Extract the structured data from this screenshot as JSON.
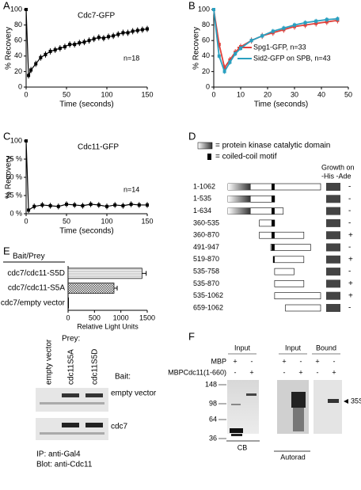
{
  "chart_data": [
    {
      "type": "line",
      "label": "A",
      "title": "Cdc7-GFP",
      "annotation": "n=18",
      "xlabel": "Time (seconds)",
      "ylabel": "% Recovery",
      "x": [
        0,
        3,
        6,
        12,
        18,
        24,
        30,
        36,
        42,
        48,
        54,
        60,
        66,
        72,
        78,
        84,
        90,
        96,
        102,
        108,
        114,
        120,
        126,
        132,
        138,
        144,
        150
      ],
      "series": [
        {
          "name": "Cdc7-GFP",
          "color": "#000000",
          "values": [
            100,
            15,
            22,
            30,
            38,
            42,
            46,
            48,
            50,
            52,
            55,
            55,
            57,
            58,
            60,
            62,
            64,
            63,
            65,
            66,
            68,
            70,
            70,
            72,
            73,
            74,
            75
          ],
          "errors": [
            0,
            4,
            4,
            4,
            4,
            4,
            4,
            4,
            4,
            4,
            4,
            4,
            4,
            4,
            4,
            4,
            4,
            4,
            4,
            4,
            4,
            4,
            4,
            4,
            4,
            4,
            4
          ]
        }
      ],
      "xlim": [
        0,
        150
      ],
      "xticks": [
        0,
        50,
        100,
        150
      ],
      "ylim": [
        0,
        100
      ],
      "yticks": [
        0,
        20,
        40,
        60,
        80,
        100
      ]
    },
    {
      "type": "line",
      "label": "B",
      "xlabel": "Time (seconds)",
      "ylabel": "% Recovery",
      "x": [
        0,
        2,
        4,
        6,
        8,
        10,
        14,
        18,
        22,
        26,
        30,
        34,
        38,
        42,
        46
      ],
      "series": [
        {
          "name": "Spg1-GFP, n=33",
          "color": "#e0403a",
          "values": [
            100,
            55,
            25,
            35,
            45,
            52,
            60,
            66,
            70,
            74,
            78,
            80,
            82,
            84,
            86
          ],
          "errors": [
            0,
            4,
            4,
            4,
            4,
            4,
            4,
            4,
            4,
            4,
            4,
            4,
            4,
            4,
            4
          ]
        },
        {
          "name": "Sid2-GFP on SPB, n=43",
          "color": "#2aa0c0",
          "values": [
            100,
            40,
            20,
            32,
            43,
            50,
            60,
            66,
            72,
            76,
            80,
            83,
            85,
            87,
            88
          ],
          "errors": [
            0,
            3,
            3,
            3,
            3,
            3,
            3,
            3,
            3,
            3,
            3,
            3,
            3,
            3,
            3
          ]
        }
      ],
      "xlim": [
        0,
        50
      ],
      "xticks": [
        0,
        10,
        20,
        30,
        40,
        50
      ],
      "ylim": [
        0,
        100
      ],
      "yticks": [
        0,
        20,
        40,
        60,
        80,
        100
      ]
    },
    {
      "type": "line",
      "label": "C",
      "title": "Cdc11-GFP",
      "annotation": "n=14",
      "xlabel": "Time (seconds)",
      "ylabel": "% Recovery",
      "x": [
        0,
        3,
        10,
        20,
        30,
        40,
        50,
        60,
        70,
        80,
        90,
        100,
        110,
        120,
        130,
        140,
        150
      ],
      "series": [
        {
          "name": "Cdc11-GFP",
          "color": "#000000",
          "values": [
            100,
            5,
            10,
            12,
            11,
            10,
            13,
            12,
            11,
            13,
            12,
            10,
            12,
            11,
            13,
            12,
            12
          ],
          "errors": [
            0,
            4,
            4,
            4,
            4,
            4,
            4,
            4,
            4,
            4,
            4,
            4,
            4,
            4,
            4,
            4,
            4
          ]
        }
      ],
      "xlim": [
        0,
        150
      ],
      "xticks": [
        0,
        50,
        100,
        150
      ],
      "ylim": [
        0,
        100
      ],
      "yticks": [
        {
          "value": 0,
          "label": "0 %"
        },
        {
          "value": 25,
          "label": "25 %"
        },
        {
          "value": 50,
          "label": "50 %"
        },
        {
          "value": 75,
          "label": "75 %"
        },
        {
          "value": 100,
          "label": "100"
        }
      ]
    },
    {
      "type": "hbar",
      "label": "E",
      "header": "Bait/Prey",
      "xlabel": "Relative Light Units",
      "categories": [
        "cdc7/cdc11-S5D",
        "cdc7/cdc11-S5A",
        "cdc7/empty vector"
      ],
      "values": [
        1400,
        870,
        10
      ],
      "errors": [
        80,
        60,
        0
      ],
      "xlim": [
        0,
        1500
      ],
      "xticks": [
        0,
        500,
        1000,
        1500
      ]
    }
  ],
  "panel_d": {
    "label": "D",
    "legend": [
      "= protein kinase catalytic domain",
      "= coiled-coil motif"
    ],
    "growth_header": [
      "Growth on",
      "-His -Ade"
    ],
    "constructs": [
      {
        "label": "1-1062",
        "growth": "-"
      },
      {
        "label": "1-535",
        "growth": "-"
      },
      {
        "label": "1-634",
        "growth": "-"
      },
      {
        "label": "360-535",
        "growth": "-"
      },
      {
        "label": "360-870",
        "growth": "+"
      },
      {
        "label": "491-947",
        "growth": "-"
      },
      {
        "label": "519-870",
        "growth": "+"
      },
      {
        "label": "535-758",
        "growth": "-"
      },
      {
        "label": "535-870",
        "growth": "+"
      },
      {
        "label": "535-1062",
        "growth": "+"
      },
      {
        "label": "659-1062",
        "growth": "-"
      }
    ]
  },
  "panel_e_blot": {
    "prey": "Prey:",
    "prey_lanes": [
      "empty vector",
      "cdc11S5A",
      "cdc11S5D"
    ],
    "bait": "Bait:",
    "bait_rows": [
      "empty vector",
      "cdc7"
    ],
    "notes": [
      "IP: anti-Gal4",
      "Blot: anti-Cdc11"
    ]
  },
  "panel_f": {
    "label": "F",
    "headers": [
      "Input",
      "Input",
      "Bound"
    ],
    "rows": [
      "MBP",
      "MBPCdc11(1-660)"
    ],
    "signs": [
      "+",
      "-",
      "-",
      "+"
    ],
    "markers": [
      "148",
      "98",
      "64",
      "36"
    ],
    "captions": [
      "CB",
      "Autorad"
    ],
    "arrow_label": "35S-Cdc7"
  }
}
